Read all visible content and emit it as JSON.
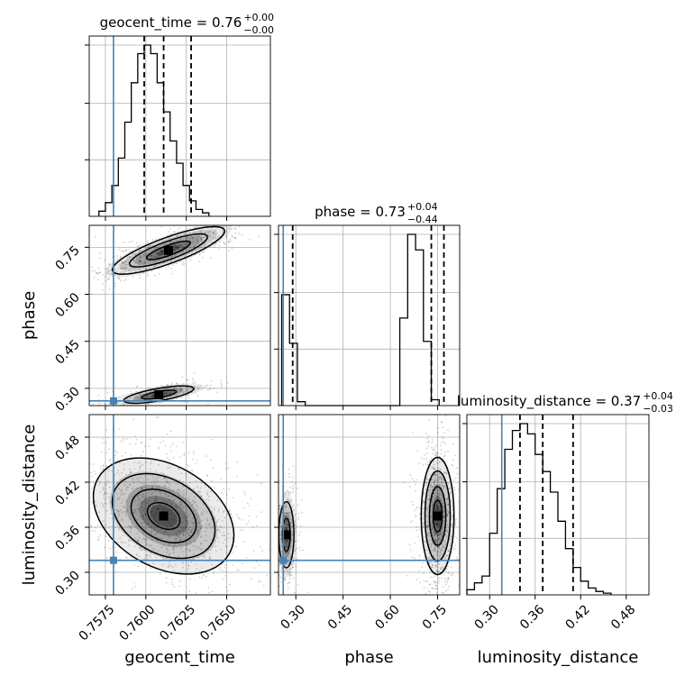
{
  "chart_data": {
    "type": "corner",
    "parameters": [
      "geocent_time",
      "phase",
      "luminosity_distance"
    ],
    "truth": {
      "geocent_time": 0.758,
      "phase": 0.26,
      "luminosity_distance": 0.316
    },
    "truth_color": "#4682b4",
    "grid": true,
    "titles": [
      {
        "param": "geocent_time",
        "label": "geocent_time = 0.76",
        "sup": "+0.00",
        "sub": "−0.00"
      },
      {
        "param": "phase",
        "label": "phase = 0.73",
        "sup": "+0.04",
        "sub": "−0.44"
      },
      {
        "param": "luminosity_distance",
        "label": "luminosity_distance = 0.37",
        "sup": "+0.04",
        "sub": "−0.03"
      }
    ],
    "axes": {
      "geocent_time": {
        "range": [
          0.7565,
          0.7677
        ],
        "ticks": [
          0.7575,
          0.76,
          0.7625,
          0.765
        ],
        "tick_labels": [
          "0.7575",
          "0.7600",
          "0.7625",
          "0.7650"
        ]
      },
      "phase": {
        "range": [
          0.245,
          0.82
        ],
        "ticks": [
          0.3,
          0.45,
          0.6,
          0.75
        ],
        "tick_labels": [
          "0.30",
          "0.45",
          "0.60",
          "0.75"
        ]
      },
      "luminosity_distance": {
        "range": [
          0.27,
          0.51
        ],
        "ticks": [
          0.3,
          0.36,
          0.42,
          0.48
        ],
        "tick_labels": [
          "0.30",
          "0.36",
          "0.42",
          "0.48"
        ]
      }
    },
    "histograms": [
      {
        "param": "geocent_time",
        "bin_start": 0.7571,
        "bin_width": 0.0004,
        "counts": [
          0.03,
          0.08,
          0.18,
          0.34,
          0.55,
          0.78,
          0.95,
          1.0,
          0.95,
          0.78,
          0.61,
          0.44,
          0.31,
          0.18,
          0.09,
          0.04,
          0.02
        ],
        "quantiles": [
          0.7599,
          0.7611,
          0.7628
        ]
      },
      {
        "param": "phase",
        "bin_start": 0.255,
        "bin_width": 0.025,
        "counts": [
          0.57,
          0.32,
          0.02,
          0,
          0,
          0,
          0,
          0,
          0,
          0,
          0,
          0,
          0,
          0,
          0,
          0.45,
          0.88,
          0.8,
          0.33,
          0.03
        ],
        "quantiles": [
          0.29,
          0.73,
          0.77
        ]
      },
      {
        "param": "luminosity_distance",
        "bin_start": 0.27,
        "bin_width": 0.01,
        "counts": [
          0.03,
          0.07,
          0.11,
          0.36,
          0.62,
          0.85,
          0.96,
          1.0,
          0.94,
          0.82,
          0.72,
          0.6,
          0.43,
          0.27,
          0.16,
          0.08,
          0.04,
          0.02,
          0.01
        ],
        "quantiles": [
          0.34,
          0.37,
          0.41
        ]
      }
    ],
    "panels2d": [
      {
        "x": "geocent_time",
        "y": "phase",
        "modes": [
          {
            "cx": 0.7614,
            "cy": 0.74,
            "sx": 0.0016,
            "sy": 0.018,
            "rot": -20,
            "n": 650,
            "contours": [
              0.9,
              1.6,
              2.3
            ]
          },
          {
            "cx": 0.7608,
            "cy": 0.28,
            "sx": 0.0011,
            "sy": 0.01,
            "rot": -10,
            "n": 300,
            "contours": [
              1.0,
              2.0
            ]
          }
        ]
      },
      {
        "x": "geocent_time",
        "y": "luminosity_distance",
        "modes": [
          {
            "cx": 0.7611,
            "cy": 0.375,
            "sx": 0.0018,
            "sy": 0.026,
            "rot": 30,
            "n": 1100,
            "contours": [
              0.6,
              1.2,
              1.9,
              2.6
            ]
          }
        ]
      },
      {
        "x": "phase",
        "y": "luminosity_distance",
        "modes": [
          {
            "cx": 0.27,
            "cy": 0.35,
            "sx": 0.012,
            "sy": 0.022,
            "rot": 0,
            "n": 420,
            "contours": [
              1.0,
              2.0
            ]
          },
          {
            "cx": 0.75,
            "cy": 0.375,
            "sx": 0.02,
            "sy": 0.03,
            "rot": 0,
            "n": 900,
            "contours": [
              0.7,
              1.3,
              2.0,
              2.6
            ]
          }
        ]
      }
    ]
  }
}
